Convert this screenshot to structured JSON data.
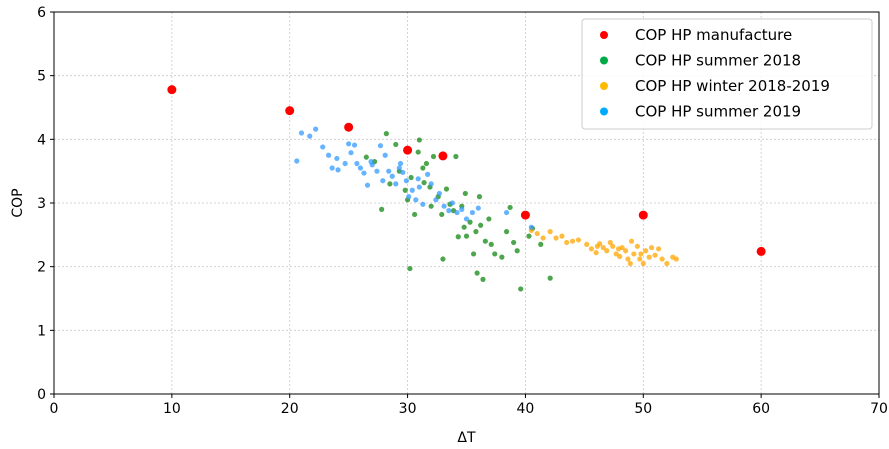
{
  "chart_data": {
    "type": "scatter",
    "title": "",
    "xlabel": "ΔT",
    "ylabel": "COP",
    "xlim": [
      0,
      70
    ],
    "ylim": [
      0,
      6
    ],
    "xticks": [
      0,
      10,
      20,
      30,
      40,
      50,
      60,
      70
    ],
    "yticks": [
      0,
      1,
      2,
      3,
      4,
      5,
      6
    ],
    "grid": true,
    "legend_position": "top-right",
    "series": [
      {
        "name": "COP HP manufacture",
        "color": "#ff0000",
        "points": [
          [
            10,
            4.78
          ],
          [
            20,
            4.45
          ],
          [
            25,
            4.19
          ],
          [
            30,
            3.83
          ],
          [
            33,
            3.74
          ],
          [
            40,
            2.81
          ],
          [
            50,
            2.81
          ],
          [
            60,
            2.24
          ]
        ]
      },
      {
        "name": "COP HP summer 2018",
        "color": "#118811",
        "points": [
          [
            26.5,
            3.72
          ],
          [
            27.2,
            3.65
          ],
          [
            27.8,
            2.9
          ],
          [
            28.2,
            4.09
          ],
          [
            28.5,
            3.3
          ],
          [
            29.0,
            3.92
          ],
          [
            29.3,
            3.5
          ],
          [
            29.8,
            3.2
          ],
          [
            30.0,
            3.05
          ],
          [
            30.3,
            3.4
          ],
          [
            30.2,
            1.97
          ],
          [
            30.6,
            2.82
          ],
          [
            30.9,
            3.8
          ],
          [
            31.0,
            3.99
          ],
          [
            31.3,
            3.55
          ],
          [
            31.6,
            3.62
          ],
          [
            31.9,
            3.25
          ],
          [
            32.2,
            3.73
          ],
          [
            32.6,
            3.1
          ],
          [
            32.9,
            2.82
          ],
          [
            33.0,
            2.12
          ],
          [
            33.3,
            3.22
          ],
          [
            33.6,
            2.98
          ],
          [
            33.9,
            2.88
          ],
          [
            34.1,
            3.73
          ],
          [
            34.3,
            2.47
          ],
          [
            34.6,
            2.95
          ],
          [
            34.9,
            3.15
          ],
          [
            35.0,
            2.48
          ],
          [
            35.3,
            2.7
          ],
          [
            35.6,
            2.2
          ],
          [
            35.8,
            2.55
          ],
          [
            35.9,
            1.9
          ],
          [
            36.1,
            3.1
          ],
          [
            36.2,
            2.65
          ],
          [
            36.4,
            1.8
          ],
          [
            36.6,
            2.4
          ],
          [
            36.9,
            2.75
          ],
          [
            37.1,
            2.35
          ],
          [
            37.4,
            2.2
          ],
          [
            38.0,
            2.15
          ],
          [
            38.4,
            2.55
          ],
          [
            38.7,
            2.93
          ],
          [
            39.0,
            2.38
          ],
          [
            39.3,
            2.25
          ],
          [
            39.6,
            1.65
          ],
          [
            40.3,
            2.48
          ],
          [
            40.6,
            2.6
          ],
          [
            41.3,
            2.35
          ],
          [
            42.1,
            1.82
          ],
          [
            31.4,
            3.32
          ],
          [
            32.0,
            2.95
          ],
          [
            34.8,
            2.62
          ]
        ]
      },
      {
        "name": "COP HP winter 2018-2019",
        "color": "#ffa500",
        "points": [
          [
            40.5,
            2.57
          ],
          [
            41.0,
            2.52
          ],
          [
            41.5,
            2.45
          ],
          [
            42.1,
            2.55
          ],
          [
            42.6,
            2.45
          ],
          [
            43.1,
            2.48
          ],
          [
            43.5,
            2.38
          ],
          [
            44.0,
            2.4
          ],
          [
            44.5,
            2.42
          ],
          [
            45.2,
            2.35
          ],
          [
            45.6,
            2.28
          ],
          [
            46.0,
            2.22
          ],
          [
            46.3,
            2.36
          ],
          [
            46.6,
            2.3
          ],
          [
            46.9,
            2.25
          ],
          [
            47.2,
            2.38
          ],
          [
            47.4,
            2.32
          ],
          [
            47.7,
            2.2
          ],
          [
            48.0,
            2.16
          ],
          [
            48.2,
            2.3
          ],
          [
            48.5,
            2.25
          ],
          [
            48.7,
            2.12
          ],
          [
            49.0,
            2.4
          ],
          [
            49.2,
            2.2
          ],
          [
            49.5,
            2.32
          ],
          [
            49.7,
            2.12
          ],
          [
            50.0,
            2.05
          ],
          [
            50.2,
            2.25
          ],
          [
            50.5,
            2.15
          ],
          [
            50.7,
            2.3
          ],
          [
            51.0,
            2.18
          ],
          [
            51.3,
            2.28
          ],
          [
            51.6,
            2.12
          ],
          [
            52.0,
            2.05
          ],
          [
            52.5,
            2.15
          ],
          [
            52.8,
            2.12
          ],
          [
            47.9,
            2.28
          ],
          [
            49.8,
            2.2
          ],
          [
            46.1,
            2.32
          ],
          [
            48.9,
            2.05
          ]
        ]
      },
      {
        "name": "COP HP summer 2019",
        "color": "#3399ff",
        "points": [
          [
            20.6,
            3.66
          ],
          [
            21.0,
            4.1
          ],
          [
            21.7,
            4.05
          ],
          [
            22.2,
            4.16
          ],
          [
            22.8,
            3.88
          ],
          [
            23.3,
            3.75
          ],
          [
            23.6,
            3.55
          ],
          [
            24.1,
            3.52
          ],
          [
            24.7,
            3.62
          ],
          [
            25.0,
            3.93
          ],
          [
            25.2,
            3.79
          ],
          [
            25.5,
            3.91
          ],
          [
            25.7,
            3.62
          ],
          [
            26.0,
            3.55
          ],
          [
            26.3,
            3.47
          ],
          [
            26.6,
            3.28
          ],
          [
            27.0,
            3.6
          ],
          [
            27.4,
            3.5
          ],
          [
            27.7,
            3.9
          ],
          [
            27.9,
            3.35
          ],
          [
            28.1,
            3.75
          ],
          [
            28.4,
            3.5
          ],
          [
            28.7,
            3.42
          ],
          [
            29.0,
            3.3
          ],
          [
            29.3,
            3.55
          ],
          [
            29.6,
            3.48
          ],
          [
            29.9,
            3.35
          ],
          [
            30.1,
            3.1
          ],
          [
            30.4,
            3.2
          ],
          [
            30.7,
            3.05
          ],
          [
            31.0,
            3.25
          ],
          [
            31.3,
            2.98
          ],
          [
            31.7,
            3.45
          ],
          [
            32.0,
            3.3
          ],
          [
            32.4,
            3.05
          ],
          [
            32.7,
            3.15
          ],
          [
            33.1,
            2.95
          ],
          [
            33.5,
            2.88
          ],
          [
            33.8,
            3.0
          ],
          [
            34.2,
            2.85
          ],
          [
            34.6,
            2.9
          ],
          [
            35.0,
            2.75
          ],
          [
            35.5,
            2.85
          ],
          [
            36.0,
            2.92
          ],
          [
            38.4,
            2.85
          ],
          [
            40.5,
            2.62
          ],
          [
            24.0,
            3.7
          ],
          [
            26.9,
            3.65
          ],
          [
            29.4,
            3.62
          ],
          [
            30.9,
            3.38
          ]
        ]
      }
    ]
  }
}
